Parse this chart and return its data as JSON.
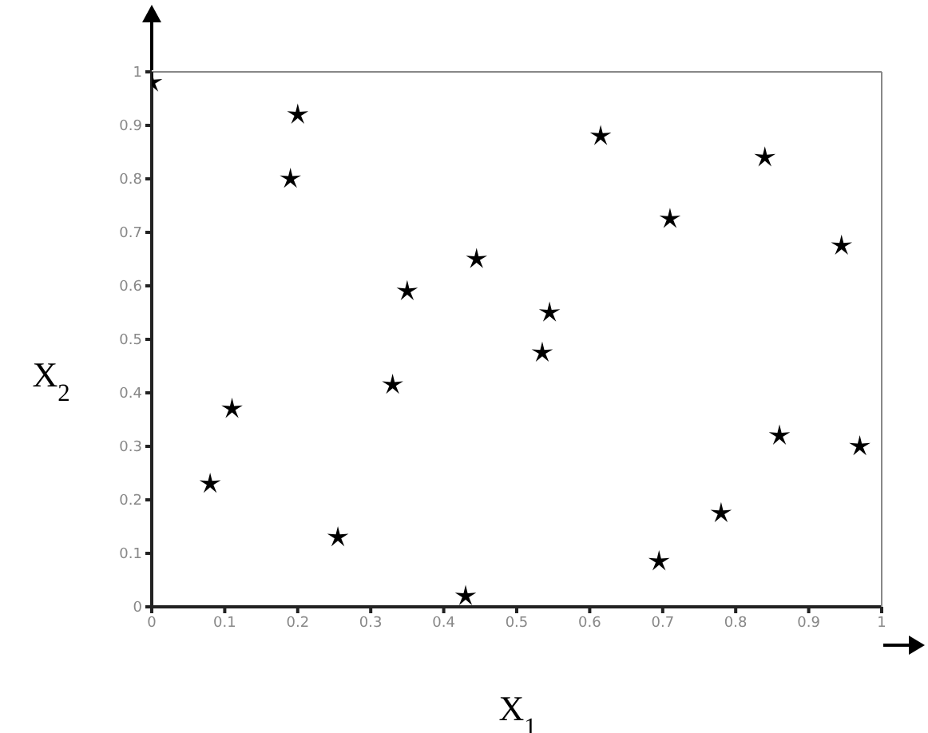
{
  "chart_data": {
    "type": "scatter",
    "xlabel": "X$_{1}$",
    "ylabel": "X$_{2}$",
    "marker": "star",
    "grid": false,
    "legend": false,
    "xlim": [
      0,
      1
    ],
    "ylim": [
      0,
      1
    ],
    "xticks": [
      0,
      0.1,
      0.2,
      0.3,
      0.4,
      0.5,
      0.6,
      0.7,
      0.8,
      0.9,
      1
    ],
    "yticks": [
      0,
      0.1,
      0.2,
      0.3,
      0.4,
      0.5,
      0.6,
      0.7,
      0.8,
      0.9,
      1
    ],
    "series": [
      {
        "color": "#000000",
        "x": [
          0.0,
          0.2,
          0.19,
          0.35,
          0.445,
          0.615,
          0.84,
          0.71,
          0.945,
          0.545,
          0.11,
          0.08,
          0.33,
          0.255,
          0.43,
          0.535,
          0.86,
          0.97,
          0.78,
          0.695
        ],
        "values": [
          0.98,
          0.92,
          0.8,
          0.59,
          0.65,
          0.88,
          0.84,
          0.725,
          0.675,
          0.55,
          0.37,
          0.23,
          0.415,
          0.13,
          0.02,
          0.475,
          0.32,
          0.3,
          0.175,
          0.085
        ]
      }
    ]
  }
}
